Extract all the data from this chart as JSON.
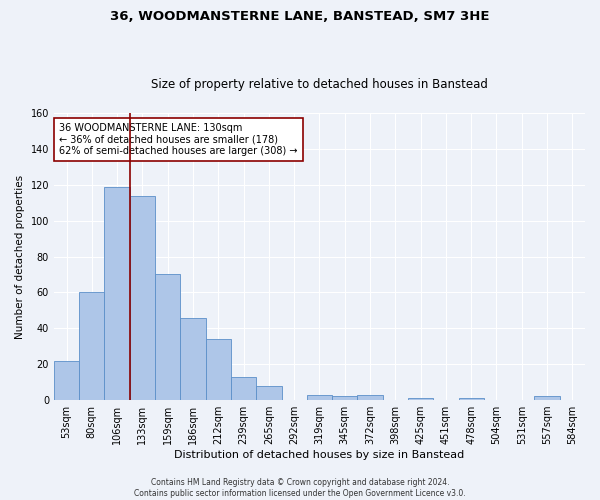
{
  "title": "36, WOODMANSTERNE LANE, BANSTEAD, SM7 3HE",
  "subtitle": "Size of property relative to detached houses in Banstead",
  "xlabel": "Distribution of detached houses by size in Banstead",
  "ylabel": "Number of detached properties",
  "categories": [
    "53sqm",
    "80sqm",
    "106sqm",
    "133sqm",
    "159sqm",
    "186sqm",
    "212sqm",
    "239sqm",
    "265sqm",
    "292sqm",
    "319sqm",
    "345sqm",
    "372sqm",
    "398sqm",
    "425sqm",
    "451sqm",
    "478sqm",
    "504sqm",
    "531sqm",
    "557sqm",
    "584sqm"
  ],
  "values": [
    22,
    60,
    119,
    114,
    70,
    46,
    34,
    13,
    8,
    0,
    3,
    2,
    3,
    0,
    1,
    0,
    1,
    0,
    0,
    2,
    0
  ],
  "bar_color": "#aec6e8",
  "bar_edge_color": "#5b8fc9",
  "vline_color": "#8b0000",
  "annotation_text": "36 WOODMANSTERNE LANE: 130sqm\n← 36% of detached houses are smaller (178)\n62% of semi-detached houses are larger (308) →",
  "annotation_box_color": "#ffffff",
  "annotation_box_edge_color": "#8b0000",
  "ylim": [
    0,
    160
  ],
  "yticks": [
    0,
    20,
    40,
    60,
    80,
    100,
    120,
    140,
    160
  ],
  "title_fontsize": 9.5,
  "subtitle_fontsize": 8.5,
  "xlabel_fontsize": 8,
  "ylabel_fontsize": 7.5,
  "tick_fontsize": 7,
  "annotation_fontsize": 7,
  "footer_line1": "Contains HM Land Registry data © Crown copyright and database right 2024.",
  "footer_line2": "Contains public sector information licensed under the Open Government Licence v3.0.",
  "background_color": "#eef2f9",
  "plot_bg_color": "#eef2f9",
  "vline_x_index": 2.5
}
